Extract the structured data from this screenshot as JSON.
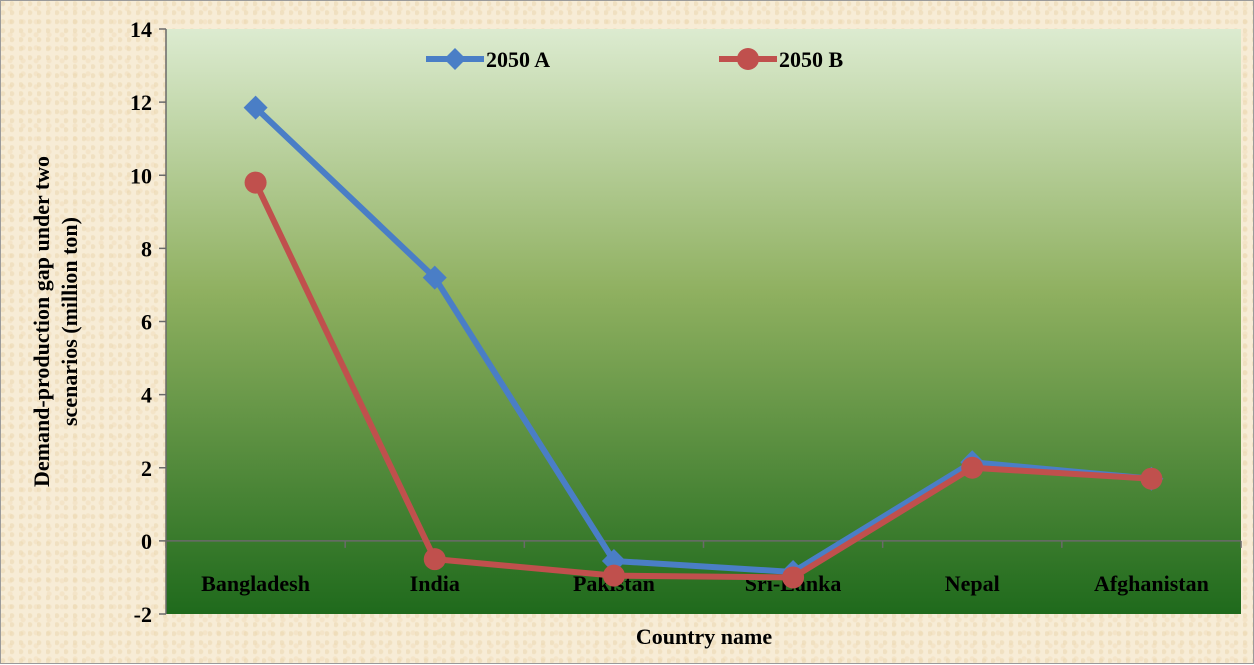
{
  "chart_data": {
    "type": "line",
    "title": "",
    "xlabel": "Country name",
    "ylabel_lines": [
      "Demand-production gap under two",
      "scenarios (million ton)"
    ],
    "categories": [
      "Bangladesh",
      "India",
      "Pakistan",
      "Sri-Lanka",
      "Nepal",
      "Afghanistan"
    ],
    "ylim": [
      -2,
      14
    ],
    "yticks": [
      -2,
      0,
      2,
      4,
      6,
      8,
      10,
      12,
      14
    ],
    "grid": false,
    "legend_position": "top-center",
    "series": [
      {
        "name": "2050 A",
        "color": "#4a7ec6",
        "marker": "diamond",
        "values": [
          11.85,
          7.2,
          -0.55,
          -0.85,
          2.15,
          1.7
        ]
      },
      {
        "name": "2050 B",
        "color": "#c0504d",
        "marker": "circle",
        "values": [
          9.8,
          -0.5,
          -0.95,
          -1.0,
          2.0,
          1.7
        ]
      }
    ],
    "plot_background": [
      "#dcebd0",
      "#8fb060",
      "#1f6a1c"
    ]
  }
}
